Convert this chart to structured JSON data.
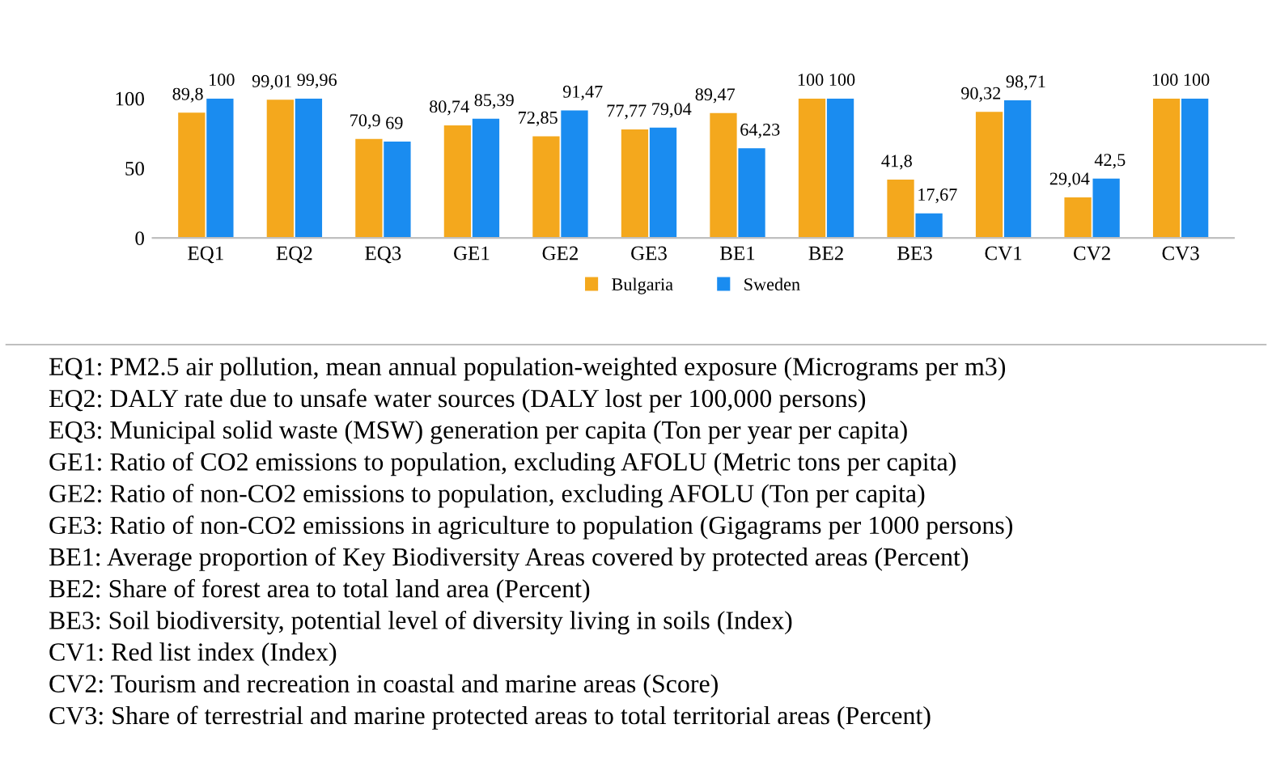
{
  "chart_data": {
    "type": "bar",
    "categories": [
      "EQ1",
      "EQ2",
      "EQ3",
      "GE1",
      "GE2",
      "GE3",
      "BE1",
      "BE2",
      "BE3",
      "CV1",
      "CV2",
      "CV3"
    ],
    "series": [
      {
        "name": "Bulgaria",
        "color": "#f4a81d",
        "values": [
          89.8,
          99.01,
          70.9,
          80.74,
          72.85,
          77.77,
          89.47,
          100,
          41.8,
          90.32,
          29.04,
          100
        ],
        "value_labels": [
          "89,8",
          "99,01",
          "70,9",
          "80,74",
          "72,85",
          "77,77",
          "89,47",
          "100",
          "41,8",
          "90,32",
          "29,04",
          "100"
        ]
      },
      {
        "name": "Sweden",
        "color": "#1a8cf0",
        "values": [
          100,
          99.96,
          69,
          85.39,
          91.47,
          79.04,
          64.23,
          100,
          17.67,
          98.71,
          42.5,
          100
        ],
        "value_labels": [
          "100",
          "99,96",
          "69",
          "85,39",
          "91,47",
          "79,04",
          "64,23",
          "100",
          "17,67",
          "98,71",
          "42,5",
          "100"
        ]
      }
    ],
    "ylim": [
      0,
      100
    ],
    "yticks": [
      0,
      50,
      100
    ],
    "grid": false,
    "legend": "bottom",
    "annotations": [
      "EQ1: PM2.5 air pollution, mean annual population-weighted exposure (Micrograms per m3)",
      "EQ2: DALY rate due to unsafe water sources (DALY lost per 100,000 persons)",
      "EQ3: Municipal solid waste (MSW) generation per capita (Ton per year per capita)",
      "GE1: Ratio of CO2 emissions to population, excluding AFOLU (Metric tons per capita)",
      "GE2: Ratio of non-CO2 emissions to population, excluding AFOLU (Ton per capita)",
      "GE3: Ratio of non-CO2 emissions in agriculture to population (Gigagrams per 1000 persons)",
      "BE1: Average proportion of Key Biodiversity Areas covered by protected areas (Percent)",
      "BE2: Share of forest area to total land area (Percent)",
      "BE3: Soil biodiversity, potential level of diversity living in soils (Index)",
      "CV1: Red list index (Index)",
      "CV2: Tourism and recreation in coastal and marine areas (Score)",
      "CV3: Share of terrestrial and marine protected areas to total territorial areas (Percent)"
    ]
  }
}
